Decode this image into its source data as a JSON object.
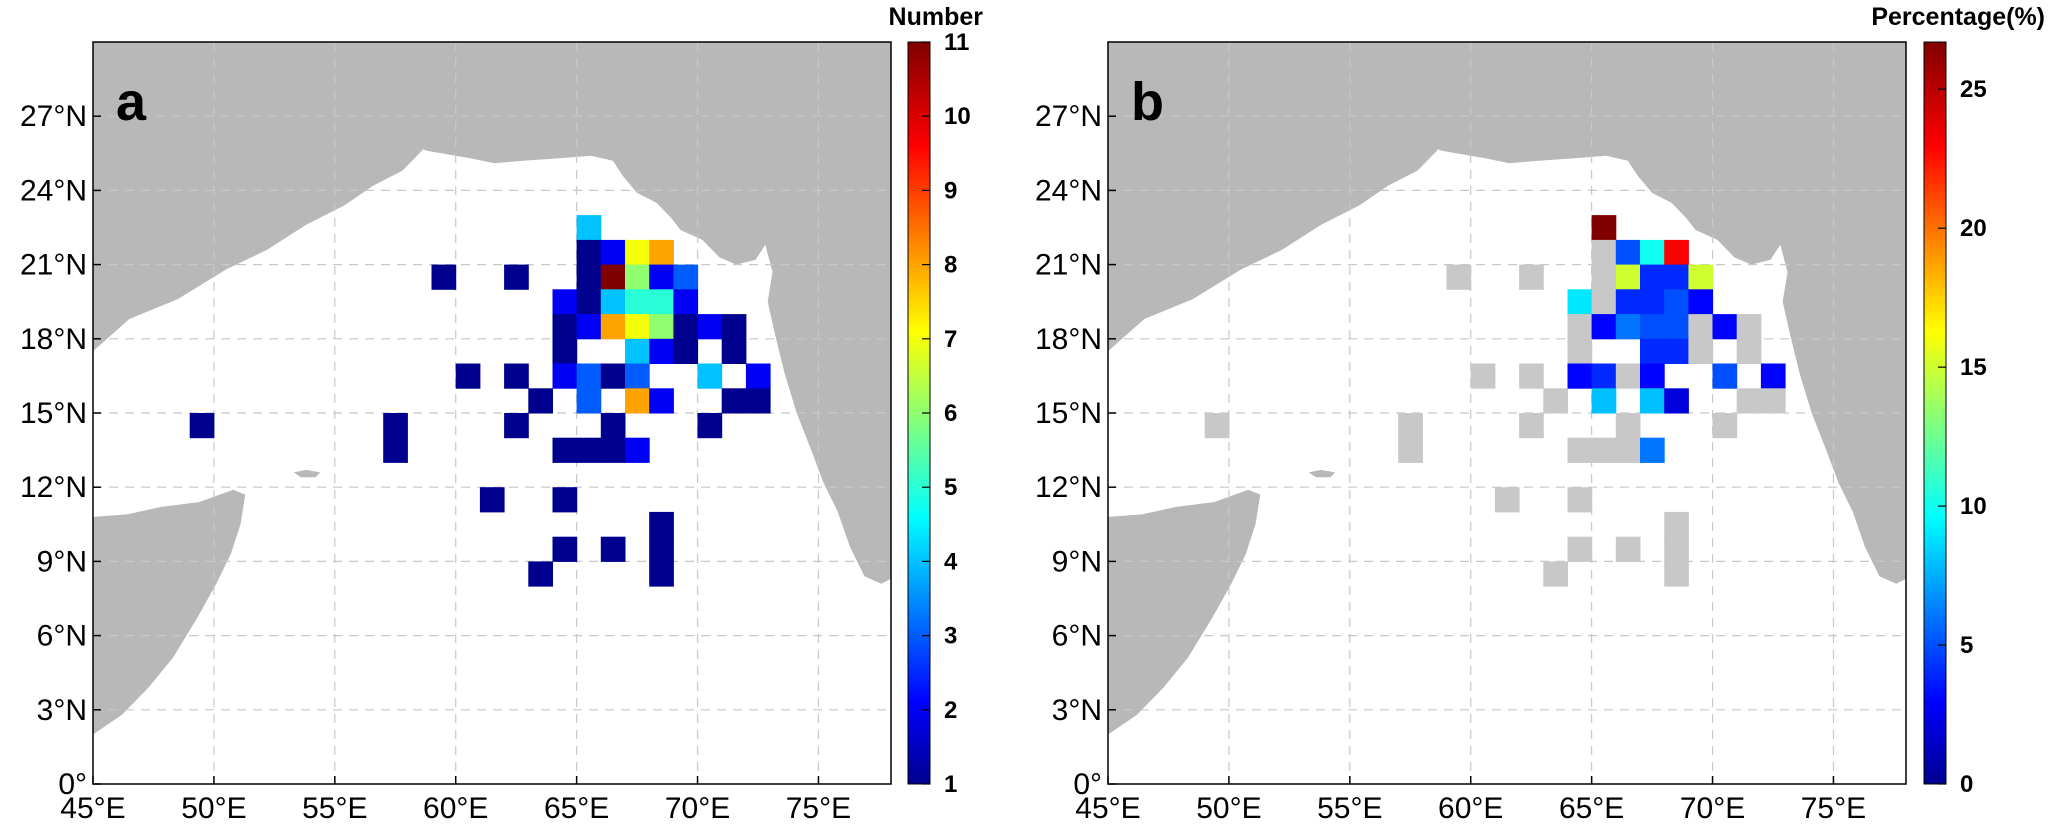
{
  "chart_data": [
    {
      "type": "heatmap",
      "panel_label": "a",
      "colorbar_title": "Number",
      "colorbar_ticks": [
        1,
        2,
        3,
        4,
        5,
        6,
        7,
        8,
        9,
        10,
        11
      ],
      "colorbar_range": [
        1,
        11
      ],
      "colormap": "jet",
      "xlim": [
        45,
        78
      ],
      "ylim": [
        0,
        30
      ],
      "xticks": [
        45,
        50,
        55,
        60,
        65,
        70,
        75
      ],
      "yticks": [
        0,
        3,
        6,
        9,
        12,
        15,
        18,
        21,
        24,
        27
      ],
      "xtick_labels": [
        "45°E",
        "50°E",
        "55°E",
        "60°E",
        "65°E",
        "70°E",
        "75°E"
      ],
      "ytick_labels": [
        "0°",
        "3°N",
        "6°N",
        "9°N",
        "12°N",
        "15°N",
        "18°N",
        "21°N",
        "24°N",
        "27°N"
      ],
      "grid": true,
      "cell_size_deg": 1,
      "cells": [
        [
          65.5,
          22.5,
          4
        ],
        [
          65.5,
          21.5,
          1
        ],
        [
          66.5,
          21.5,
          2
        ],
        [
          67.5,
          21.5,
          7
        ],
        [
          68.5,
          21.5,
          8
        ],
        [
          59.5,
          20.5,
          1
        ],
        [
          62.5,
          20.5,
          1
        ],
        [
          65.5,
          20.5,
          1
        ],
        [
          66.5,
          20.5,
          11
        ],
        [
          67.5,
          20.5,
          6
        ],
        [
          68.5,
          20.5,
          2
        ],
        [
          69.5,
          20.5,
          3
        ],
        [
          64.5,
          19.5,
          2
        ],
        [
          65.5,
          19.5,
          1
        ],
        [
          66.5,
          19.5,
          4
        ],
        [
          67.5,
          19.5,
          5
        ],
        [
          68.5,
          19.5,
          5
        ],
        [
          69.5,
          19.5,
          2
        ],
        [
          64.5,
          18.5,
          1
        ],
        [
          65.5,
          18.5,
          2
        ],
        [
          66.5,
          18.5,
          8
        ],
        [
          67.5,
          18.5,
          7
        ],
        [
          68.5,
          18.5,
          6
        ],
        [
          69.5,
          18.5,
          1
        ],
        [
          70.5,
          18.5,
          2
        ],
        [
          71.5,
          18.5,
          1
        ],
        [
          64.5,
          17.5,
          1
        ],
        [
          67.5,
          17.5,
          4
        ],
        [
          68.5,
          17.5,
          2
        ],
        [
          69.5,
          17.5,
          1
        ],
        [
          71.5,
          17.5,
          1
        ],
        [
          60.5,
          16.5,
          1
        ],
        [
          62.5,
          16.5,
          1
        ],
        [
          64.5,
          16.5,
          2
        ],
        [
          65.5,
          16.5,
          3
        ],
        [
          66.5,
          16.5,
          1
        ],
        [
          67.5,
          16.5,
          3
        ],
        [
          70.5,
          16.5,
          4
        ],
        [
          72.5,
          16.5,
          2
        ],
        [
          63.5,
          15.5,
          1
        ],
        [
          65.5,
          15.5,
          3
        ],
        [
          67.5,
          15.5,
          8
        ],
        [
          68.5,
          15.5,
          2
        ],
        [
          71.5,
          15.5,
          1
        ],
        [
          72.5,
          15.5,
          1
        ],
        [
          49.5,
          14.5,
          1
        ],
        [
          57.5,
          14.5,
          1
        ],
        [
          62.5,
          14.5,
          1
        ],
        [
          66.5,
          14.5,
          1
        ],
        [
          70.5,
          14.5,
          1
        ],
        [
          57.5,
          13.5,
          1
        ],
        [
          64.5,
          13.5,
          1
        ],
        [
          65.5,
          13.5,
          1
        ],
        [
          66.5,
          13.5,
          1
        ],
        [
          67.5,
          13.5,
          2
        ],
        [
          61.5,
          11.5,
          1
        ],
        [
          64.5,
          11.5,
          1
        ],
        [
          64.5,
          9.5,
          1
        ],
        [
          66.5,
          9.5,
          1
        ],
        [
          68.5,
          10.5,
          1
        ],
        [
          68.5,
          9.5,
          1
        ],
        [
          68.5,
          8.5,
          1
        ],
        [
          63.5,
          8.5,
          1
        ]
      ]
    },
    {
      "type": "heatmap",
      "panel_label": "b",
      "colorbar_title": "Percentage(%)",
      "colorbar_ticks": [
        0,
        5,
        10,
        15,
        20,
        25
      ],
      "colorbar_range": [
        0,
        26.7
      ],
      "colormap": "jet",
      "zero_color": "#c8c8c8",
      "xlim": [
        45,
        78
      ],
      "ylim": [
        0,
        30
      ],
      "xticks": [
        45,
        50,
        55,
        60,
        65,
        70,
        75
      ],
      "yticks": [
        0,
        3,
        6,
        9,
        12,
        15,
        18,
        21,
        24,
        27
      ],
      "xtick_labels": [
        "45°E",
        "50°E",
        "55°E",
        "60°E",
        "65°E",
        "70°E",
        "75°E"
      ],
      "ytick_labels": [
        "0°",
        "3°N",
        "6°N",
        "9°N",
        "12°N",
        "15°N",
        "18°N",
        "21°N",
        "24°N",
        "27°N"
      ],
      "grid": true,
      "cell_size_deg": 1,
      "cells": [
        [
          65.5,
          22.5,
          26.7
        ],
        [
          65.5,
          21.5,
          0
        ],
        [
          66.5,
          21.5,
          5
        ],
        [
          67.5,
          21.5,
          10
        ],
        [
          68.5,
          21.5,
          23
        ],
        [
          59.5,
          20.5,
          0
        ],
        [
          62.5,
          20.5,
          0
        ],
        [
          65.5,
          20.5,
          0
        ],
        [
          66.5,
          20.5,
          15
        ],
        [
          67.5,
          20.5,
          4
        ],
        [
          68.5,
          20.5,
          4
        ],
        [
          69.5,
          20.5,
          15
        ],
        [
          64.5,
          19.5,
          9
        ],
        [
          65.5,
          19.5,
          0
        ],
        [
          66.5,
          19.5,
          4
        ],
        [
          67.5,
          19.5,
          4
        ],
        [
          68.5,
          19.5,
          5
        ],
        [
          69.5,
          19.5,
          3
        ],
        [
          64.5,
          18.5,
          0
        ],
        [
          65.5,
          18.5,
          3
        ],
        [
          66.5,
          18.5,
          6
        ],
        [
          67.5,
          18.5,
          5
        ],
        [
          68.5,
          18.5,
          5
        ],
        [
          69.5,
          18.5,
          0
        ],
        [
          70.5,
          18.5,
          3
        ],
        [
          71.5,
          18.5,
          0
        ],
        [
          64.5,
          17.5,
          0
        ],
        [
          67.5,
          17.5,
          4
        ],
        [
          68.5,
          17.5,
          4
        ],
        [
          69.5,
          17.5,
          0
        ],
        [
          71.5,
          17.5,
          0
        ],
        [
          60.5,
          16.5,
          0
        ],
        [
          62.5,
          16.5,
          0
        ],
        [
          64.5,
          16.5,
          3
        ],
        [
          65.5,
          16.5,
          4
        ],
        [
          66.5,
          16.5,
          0
        ],
        [
          67.5,
          16.5,
          3
        ],
        [
          70.5,
          16.5,
          5
        ],
        [
          72.5,
          16.5,
          3
        ],
        [
          63.5,
          15.5,
          0
        ],
        [
          65.5,
          15.5,
          8
        ],
        [
          67.5,
          15.5,
          8
        ],
        [
          68.5,
          15.5,
          2
        ],
        [
          71.5,
          15.5,
          0
        ],
        [
          72.5,
          15.5,
          0
        ],
        [
          49.5,
          14.5,
          0
        ],
        [
          57.5,
          14.5,
          0
        ],
        [
          62.5,
          14.5,
          0
        ],
        [
          66.5,
          14.5,
          0
        ],
        [
          70.5,
          14.5,
          0
        ],
        [
          57.5,
          13.5,
          0
        ],
        [
          64.5,
          13.5,
          0
        ],
        [
          65.5,
          13.5,
          0
        ],
        [
          66.5,
          13.5,
          0
        ],
        [
          67.5,
          13.5,
          6
        ],
        [
          61.5,
          11.5,
          0
        ],
        [
          64.5,
          11.5,
          0
        ],
        [
          64.5,
          9.5,
          0
        ],
        [
          66.5,
          9.5,
          0
        ],
        [
          68.5,
          10.5,
          0
        ],
        [
          68.5,
          9.5,
          0
        ],
        [
          68.5,
          8.5,
          0
        ],
        [
          63.5,
          8.5,
          0
        ]
      ]
    }
  ],
  "map": {
    "land_color": "#b8b8b8",
    "ocean_color": "#ffffff",
    "region": "Arabian Sea"
  }
}
